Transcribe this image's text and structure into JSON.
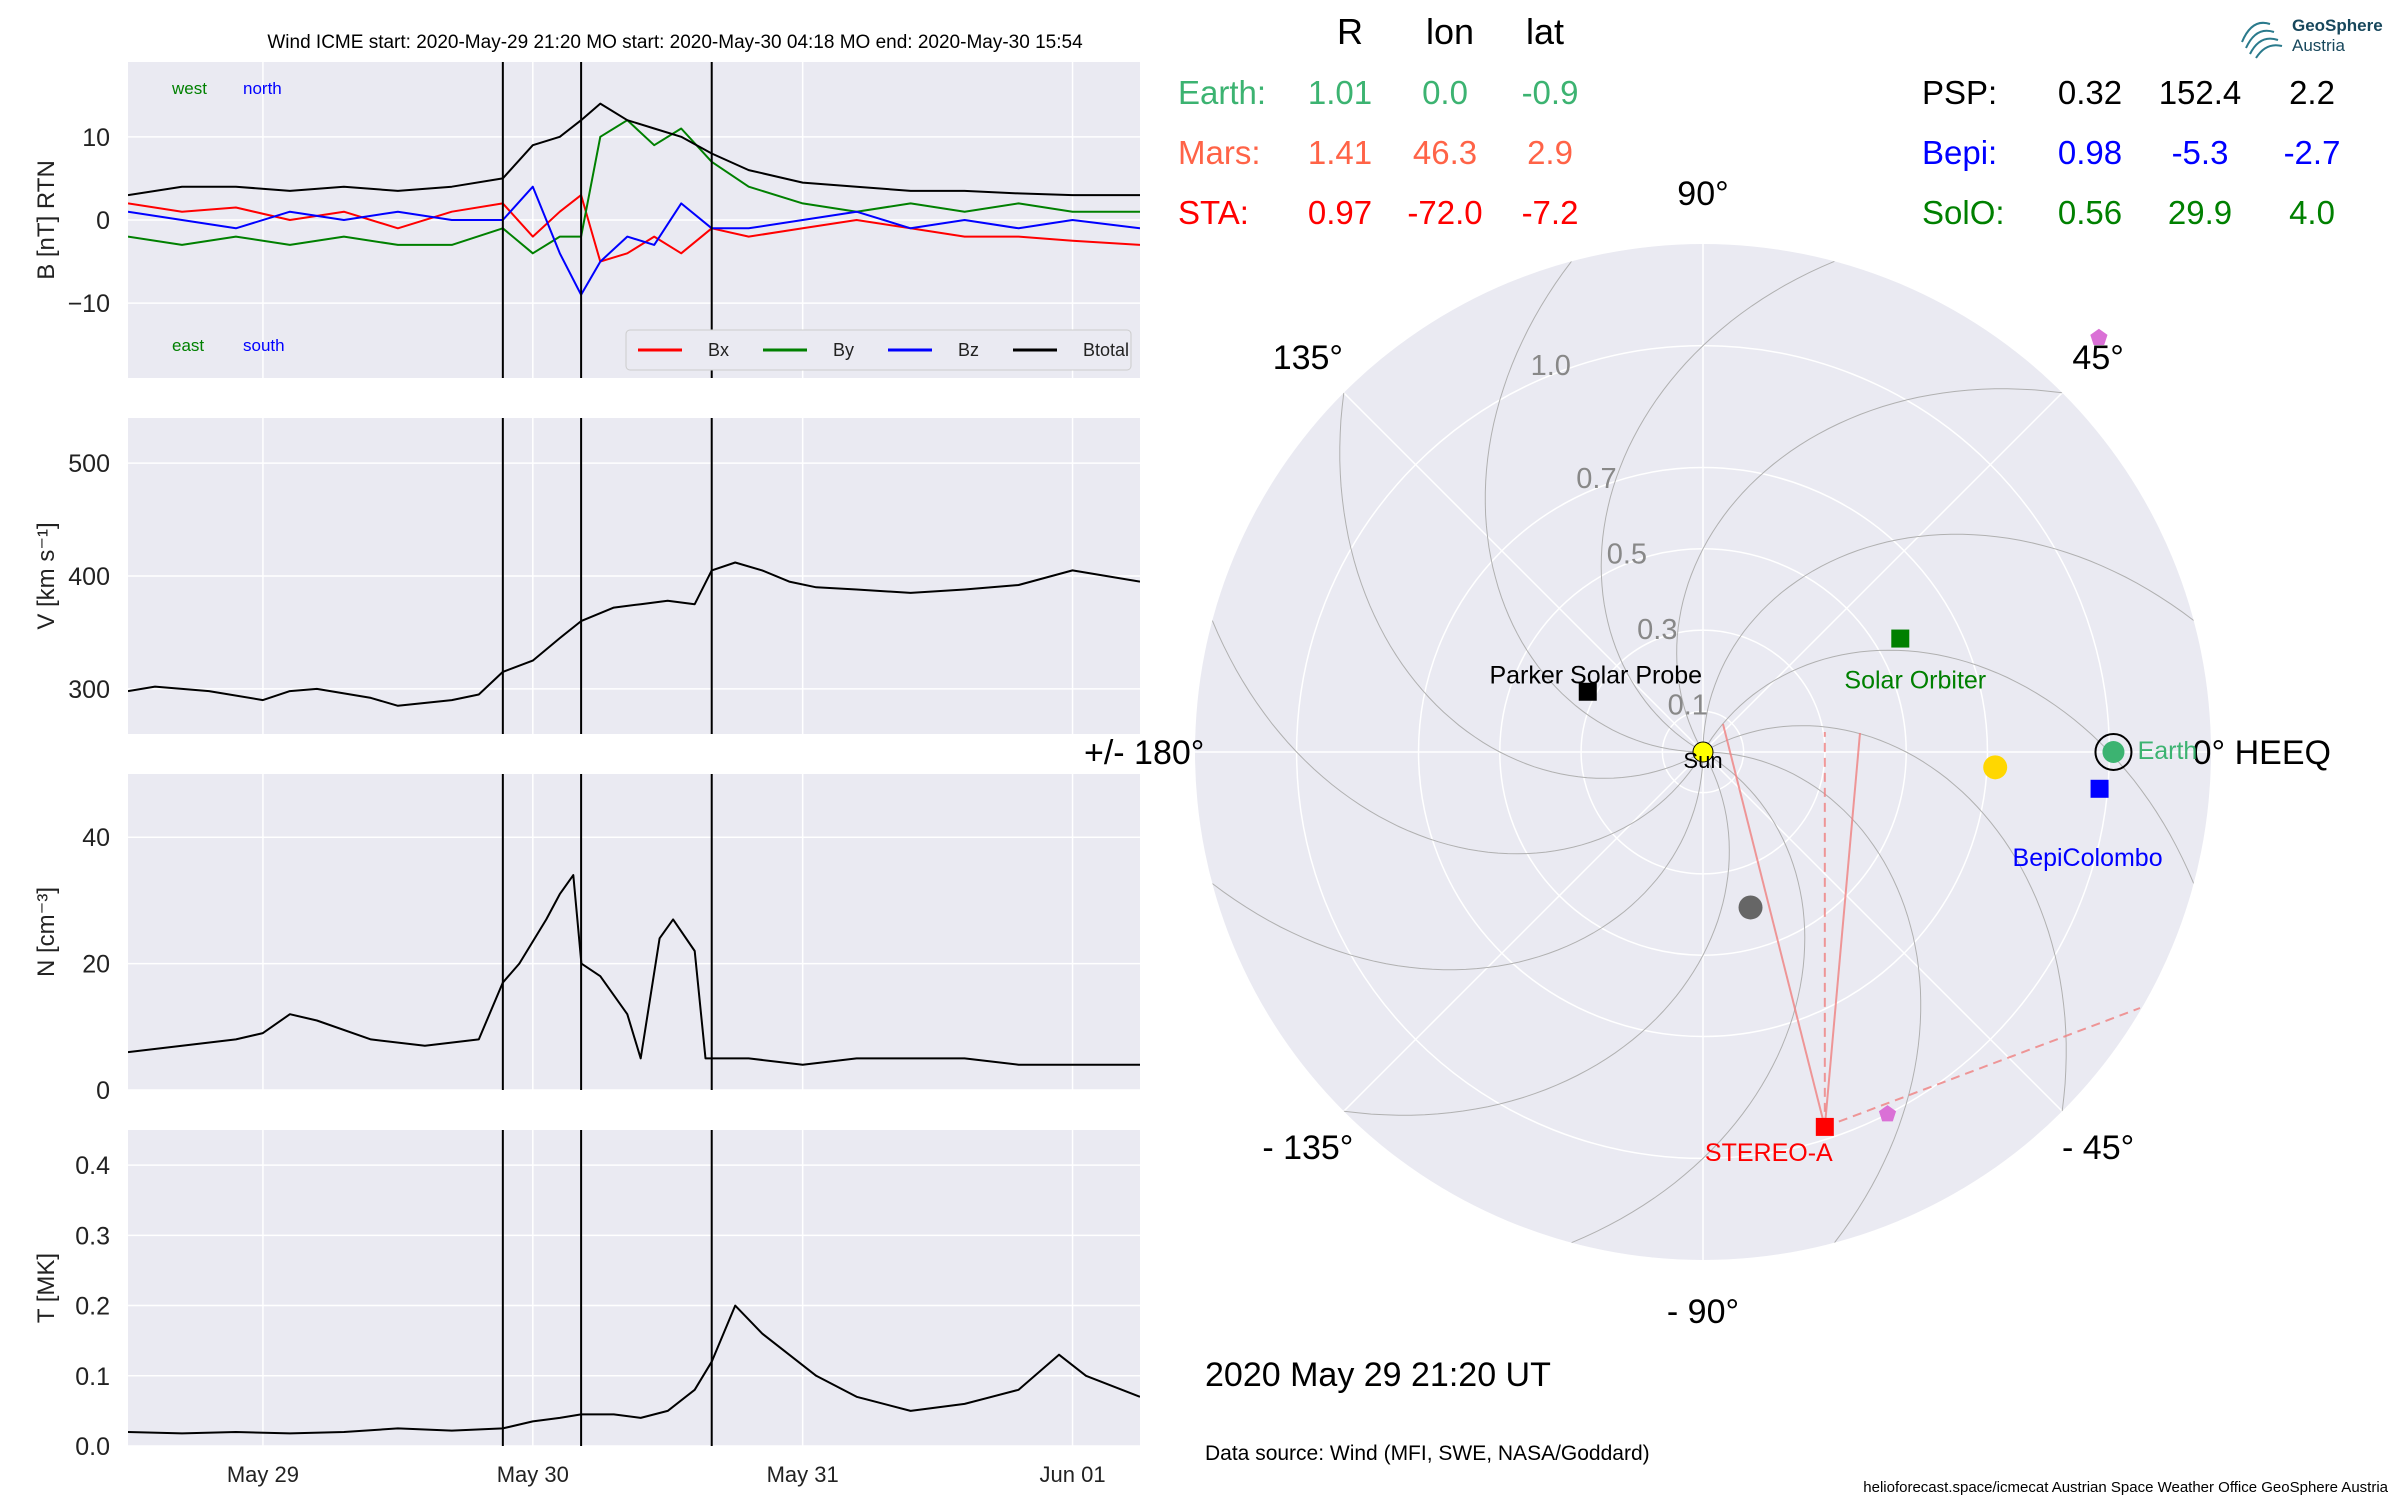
{
  "header": {
    "title": "Wind    ICME start: 2020-May-29 21:20   MO start: 2020-May-30 04:18   MO end: 2020-May-30 15:54"
  },
  "logo": {
    "line1": "GeoSphere",
    "line2": "Austria"
  },
  "position_table": {
    "columns": [
      "R",
      "lon",
      "lat"
    ],
    "rows_left": [
      {
        "name": "Earth:",
        "r": "1.01",
        "lon": "0.0",
        "lat": "-0.9",
        "color": "#3cb371"
      },
      {
        "name": "Mars:",
        "r": "1.41",
        "lon": "46.3",
        "lat": "2.9",
        "color": "#ff6347"
      },
      {
        "name": "STA:",
        "r": "0.97",
        "lon": "-72.0",
        "lat": "-7.2",
        "color": "#ff0000"
      }
    ],
    "rows_right": [
      {
        "name": "PSP:",
        "r": "0.32",
        "lon": "152.4",
        "lat": "2.2",
        "color": "#000000"
      },
      {
        "name": "Bepi:",
        "r": "0.98",
        "lon": "-5.3",
        "lat": "-2.7",
        "color": "#0000ff"
      },
      {
        "name": "SolO:",
        "r": "0.56",
        "lon": "29.9",
        "lat": "4.0",
        "color": "#008000"
      }
    ]
  },
  "polar": {
    "angle_labels": [
      {
        "deg": 0,
        "text": "0° HEEQ"
      },
      {
        "deg": 45,
        "text": "45°"
      },
      {
        "deg": 90,
        "text": "90°"
      },
      {
        "deg": 135,
        "text": "135°"
      },
      {
        "deg": 180,
        "text": "+/- 180°"
      },
      {
        "deg": -135,
        "text": "- 135°"
      },
      {
        "deg": -90,
        "text": "- 90°"
      },
      {
        "deg": -45,
        "text": "- 45°"
      }
    ],
    "radial_labels": [
      "0.1",
      "0.3",
      "0.5",
      "0.7",
      "1.0"
    ],
    "radial_values": [
      0.1,
      0.3,
      0.5,
      0.7,
      1.0
    ],
    "rmax": 1.25,
    "bodies": [
      {
        "label": "Sun",
        "r": 0.0,
        "lon": 0,
        "marker": "sun",
        "color": "#ffff00",
        "label_color": "#000000"
      },
      {
        "label": "Earth",
        "r": 1.01,
        "lon": 0.0,
        "marker": "earth",
        "color": "#3cb371",
        "label_color": "#3cb371"
      },
      {
        "label": "",
        "r": 0.72,
        "lon": -3,
        "marker": "circle",
        "color": "#ffd700",
        "label_color": "#000000"
      },
      {
        "label": "",
        "r": 0.4,
        "lon": -73,
        "marker": "circle",
        "color": "#666666",
        "label_color": "#000000"
      },
      {
        "label": "Solar Orbiter",
        "r": 0.56,
        "lon": 29.9,
        "marker": "square",
        "color": "#008000",
        "label_color": "#008000"
      },
      {
        "label": "BepiColombo",
        "r": 0.98,
        "lon": -5.3,
        "marker": "square",
        "color": "#0000ff",
        "label_color": "#0000ff"
      },
      {
        "label": "Parker Solar Probe",
        "r": 0.32,
        "lon": 152.4,
        "marker": "square",
        "color": "#000000",
        "label_color": "#000000"
      },
      {
        "label": "STEREO-A",
        "r": 0.97,
        "lon": -72.0,
        "marker": "square",
        "color": "#ff0000",
        "label_color": "#ff0000"
      },
      {
        "label": "",
        "r": 1.41,
        "lon": 46.3,
        "marker": "pentagon",
        "color": "#da70d6",
        "label_color": "#000000"
      },
      {
        "label": "",
        "r": 1.0,
        "lon": -63,
        "marker": "pentagon",
        "color": "#da70d6",
        "label_color": "#000000"
      }
    ]
  },
  "date_label": "2020 May 29  21:20 UT",
  "data_source": "Data source: Wind (MFI, SWE, NASA/Goddard)",
  "footer": "helioforecast.space/icmecat   Austrian Space Weather Office   GeoSphere Austria",
  "colors": {
    "bx": "#ff0000",
    "by": "#008000",
    "bz": "#0000ff",
    "btotal": "#000000",
    "panel_bg": "#eaeaf2",
    "grid": "#ffffff"
  },
  "chart_data": [
    {
      "type": "line",
      "ylabel": "B [nT] RTN",
      "ylim": [
        -19,
        19
      ],
      "yticks": [
        -10,
        0,
        10
      ],
      "ytick_labels": [
        "−10",
        "0",
        "10"
      ],
      "xlim": [
        0.0,
        3.75
      ],
      "x_ticks": [
        {
          "pos": 0.5,
          "label": "May 29"
        },
        {
          "pos": 1.5,
          "label": "May 30"
        },
        {
          "pos": 2.5,
          "label": "May 31"
        },
        {
          "pos": 3.5,
          "label": "Jun 01"
        }
      ],
      "x_units": "days since 2020-May-28 12:00",
      "vlines": [
        1.389,
        1.679,
        2.163
      ],
      "annotations": {
        "west": "west",
        "north": "north",
        "east": "east",
        "south": "south"
      },
      "legend": {
        "placement": "lower right",
        "entries": [
          "Bx",
          "By",
          "Bz",
          "Btotal"
        ]
      },
      "series": [
        {
          "name": "Btotal",
          "x": [
            0.0,
            0.2,
            0.4,
            0.6,
            0.8,
            1.0,
            1.2,
            1.389,
            1.5,
            1.6,
            1.679,
            1.75,
            1.85,
            1.95,
            2.05,
            2.163,
            2.3,
            2.5,
            2.7,
            2.9,
            3.1,
            3.3,
            3.5,
            3.75
          ],
          "y": [
            3,
            4,
            4,
            3.5,
            4,
            3.5,
            4,
            5,
            9,
            10,
            12,
            14,
            12,
            11,
            10,
            8,
            6,
            4.5,
            4,
            3.5,
            3.5,
            3.2,
            3,
            3
          ]
        },
        {
          "name": "Bx",
          "x": [
            0.0,
            0.2,
            0.4,
            0.6,
            0.8,
            1.0,
            1.2,
            1.389,
            1.5,
            1.6,
            1.679,
            1.75,
            1.85,
            1.95,
            2.05,
            2.163,
            2.3,
            2.5,
            2.7,
            2.9,
            3.1,
            3.3,
            3.5,
            3.75
          ],
          "y": [
            2,
            1,
            1.5,
            0,
            1,
            -1,
            1,
            2,
            -2,
            1,
            3,
            -5,
            -4,
            -2,
            -4,
            -1,
            -2,
            -1,
            0,
            -1,
            -2,
            -2,
            -2.5,
            -3
          ]
        },
        {
          "name": "By",
          "x": [
            0.0,
            0.2,
            0.4,
            0.6,
            0.8,
            1.0,
            1.2,
            1.389,
            1.5,
            1.6,
            1.679,
            1.75,
            1.85,
            1.95,
            2.05,
            2.163,
            2.3,
            2.5,
            2.7,
            2.9,
            3.1,
            3.3,
            3.5,
            3.75
          ],
          "y": [
            -2,
            -3,
            -2,
            -3,
            -2,
            -3,
            -3,
            -1,
            -4,
            -2,
            -2,
            10,
            12,
            9,
            11,
            7,
            4,
            2,
            1,
            2,
            1,
            2,
            1,
            1
          ]
        },
        {
          "name": "Bz",
          "x": [
            0.0,
            0.2,
            0.4,
            0.6,
            0.8,
            1.0,
            1.2,
            1.389,
            1.5,
            1.6,
            1.679,
            1.75,
            1.85,
            1.95,
            2.05,
            2.163,
            2.3,
            2.5,
            2.7,
            2.9,
            3.1,
            3.3,
            3.5,
            3.75
          ],
          "y": [
            1,
            0,
            -1,
            1,
            0,
            1,
            0,
            0,
            4,
            -4,
            -9,
            -5,
            -2,
            -3,
            2,
            -1,
            -1,
            0,
            1,
            -1,
            0,
            -1,
            0,
            -1
          ]
        }
      ]
    },
    {
      "type": "line",
      "ylabel": "V [km s⁻¹]",
      "ylim": [
        260,
        540
      ],
      "yticks": [
        300,
        400,
        500
      ],
      "ytick_labels": [
        "300",
        "400",
        "500"
      ],
      "xlim": [
        0.0,
        3.75
      ],
      "x_ticks": [
        {
          "pos": 0.5,
          "label": "May 29"
        },
        {
          "pos": 1.5,
          "label": "May 30"
        },
        {
          "pos": 2.5,
          "label": "May 31"
        },
        {
          "pos": 3.5,
          "label": "Jun 01"
        }
      ],
      "x_units": "days since 2020-May-28 12:00",
      "vlines": [
        1.389,
        1.679,
        2.163
      ],
      "series": [
        {
          "name": "V",
          "x": [
            0.0,
            0.1,
            0.3,
            0.5,
            0.6,
            0.7,
            0.9,
            1.0,
            1.2,
            1.3,
            1.389,
            1.5,
            1.6,
            1.679,
            1.8,
            1.9,
            2.0,
            2.1,
            2.163,
            2.25,
            2.35,
            2.45,
            2.55,
            2.7,
            2.9,
            3.1,
            3.3,
            3.5,
            3.75
          ],
          "y": [
            298,
            302,
            298,
            290,
            298,
            300,
            292,
            285,
            290,
            295,
            315,
            325,
            345,
            360,
            372,
            375,
            378,
            375,
            405,
            412,
            405,
            395,
            390,
            388,
            385,
            388,
            392,
            405,
            395
          ]
        }
      ]
    },
    {
      "type": "line",
      "ylabel": "N [cm⁻³]",
      "ylim": [
        0,
        50
      ],
      "yticks": [
        0,
        20,
        40
      ],
      "ytick_labels": [
        "0",
        "20",
        "40"
      ],
      "xlim": [
        0.0,
        3.75
      ],
      "x_ticks": [
        {
          "pos": 0.5,
          "label": "May 29"
        },
        {
          "pos": 1.5,
          "label": "May 30"
        },
        {
          "pos": 2.5,
          "label": "May 31"
        },
        {
          "pos": 3.5,
          "label": "Jun 01"
        }
      ],
      "x_units": "days since 2020-May-28 12:00",
      "vlines": [
        1.389,
        1.679,
        2.163
      ],
      "series": [
        {
          "name": "N",
          "x": [
            0.0,
            0.2,
            0.4,
            0.5,
            0.6,
            0.7,
            0.9,
            1.1,
            1.3,
            1.389,
            1.45,
            1.55,
            1.6,
            1.65,
            1.68,
            1.75,
            1.85,
            1.9,
            1.97,
            2.02,
            2.1,
            2.14,
            2.163,
            2.3,
            2.5,
            2.7,
            2.9,
            3.1,
            3.3,
            3.5,
            3.75
          ],
          "y": [
            6,
            7,
            8,
            9,
            12,
            11,
            8,
            7,
            8,
            17,
            20,
            27,
            31,
            34,
            20,
            18,
            12,
            5,
            24,
            27,
            22,
            5,
            5,
            5,
            4,
            5,
            5,
            5,
            4,
            4,
            4
          ]
        }
      ]
    },
    {
      "type": "line",
      "ylabel": "T [MK]",
      "ylim": [
        0.0,
        0.45
      ],
      "yticks": [
        0.0,
        0.1,
        0.2,
        0.3,
        0.4
      ],
      "ytick_labels": [
        "0.0",
        "0.1",
        "0.2",
        "0.3",
        "0.4"
      ],
      "xlim": [
        0.0,
        3.75
      ],
      "x_ticks": [
        {
          "pos": 0.5,
          "label": "May 29"
        },
        {
          "pos": 1.5,
          "label": "May 30"
        },
        {
          "pos": 2.5,
          "label": "May 31"
        },
        {
          "pos": 3.5,
          "label": "Jun 01"
        }
      ],
      "x_units": "days since 2020-May-28 12:00",
      "vlines": [
        1.389,
        1.679,
        2.163
      ],
      "series": [
        {
          "name": "T",
          "x": [
            0.0,
            0.2,
            0.4,
            0.6,
            0.8,
            1.0,
            1.2,
            1.389,
            1.5,
            1.6,
            1.679,
            1.8,
            1.9,
            2.0,
            2.1,
            2.163,
            2.25,
            2.35,
            2.45,
            2.55,
            2.7,
            2.9,
            3.1,
            3.3,
            3.45,
            3.55,
            3.75
          ],
          "y": [
            0.02,
            0.018,
            0.02,
            0.018,
            0.02,
            0.025,
            0.022,
            0.025,
            0.035,
            0.04,
            0.045,
            0.045,
            0.04,
            0.05,
            0.08,
            0.12,
            0.2,
            0.16,
            0.13,
            0.1,
            0.07,
            0.05,
            0.06,
            0.08,
            0.13,
            0.1,
            0.07
          ]
        }
      ]
    }
  ]
}
